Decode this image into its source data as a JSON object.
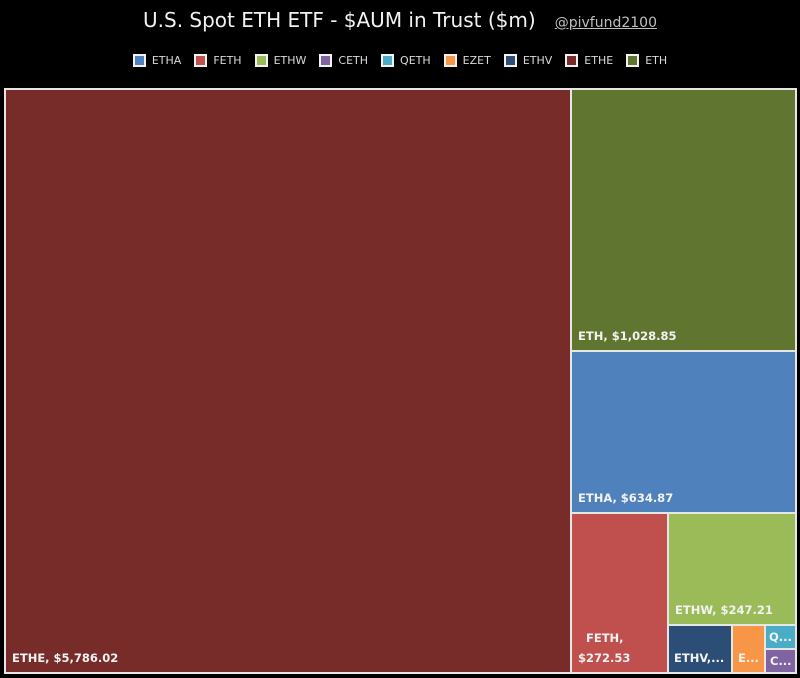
{
  "chart_data": {
    "type": "treemap",
    "title": "U.S. Spot ETH ETF - $AUM in Trust ($m)",
    "handle": "@pivfund2100",
    "legend_position": "top",
    "legend": [
      "ETHA",
      "FETH",
      "ETHW",
      "CETH",
      "QETH",
      "EZET",
      "ETHV",
      "ETHE",
      "ETH"
    ],
    "colors": {
      "ETHA": "#4f81bd",
      "FETH": "#c0504d",
      "ETHW": "#9bbb59",
      "CETH": "#8064a2",
      "QETH": "#4bacc6",
      "EZET": "#f79646",
      "ETHV": "#2c4d75",
      "ETHE": "#772c2a",
      "ETH": "#5f7530"
    },
    "items": [
      {
        "name": "ETHE",
        "value": 5786.02,
        "label": "ETHE, $5,786.02"
      },
      {
        "name": "ETH",
        "value": 1028.85,
        "label": "ETH, $1,028.85"
      },
      {
        "name": "ETHA",
        "value": 634.87,
        "label": "ETHA, $634.87"
      },
      {
        "name": "FETH",
        "value": 272.53,
        "label_line1": "FETH,",
        "label_line2": "$272.53"
      },
      {
        "name": "ETHW",
        "value": 247.21,
        "label": "ETHW, $247.21"
      },
      {
        "name": "ETHV",
        "label": "ETHV,..."
      },
      {
        "name": "EZET",
        "label": "E..."
      },
      {
        "name": "QETH",
        "label": "Q..."
      },
      {
        "name": "CETH",
        "label": "C..."
      }
    ]
  }
}
